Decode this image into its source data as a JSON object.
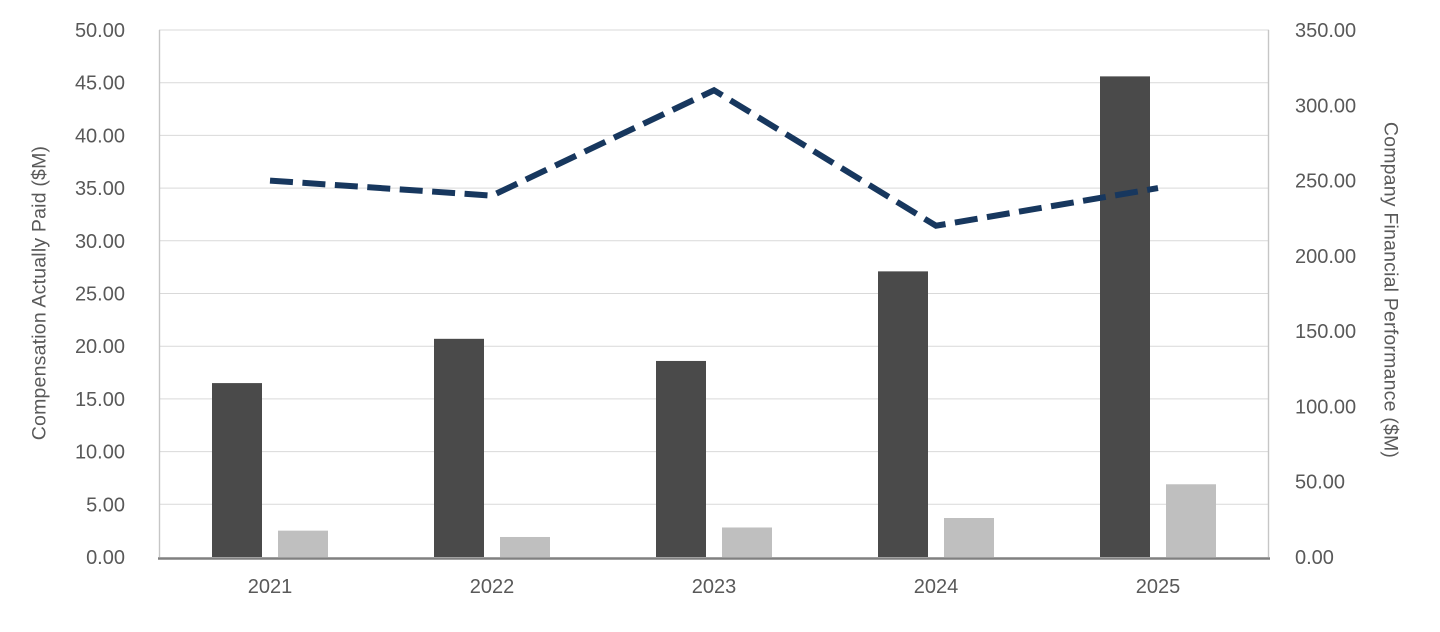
{
  "chart_data": {
    "type": "bar",
    "subtype": "combo-bar-line-dual-axis",
    "categories": [
      "2021",
      "2022",
      "2023",
      "2024",
      "2025"
    ],
    "series": [
      {
        "name": "compensation-actually-paid-dark-bars",
        "type": "bar",
        "axis": "left",
        "color": "#4A4A4A",
        "values": [
          16.5,
          20.7,
          18.6,
          27.1,
          45.6
        ]
      },
      {
        "name": "secondary-compensation-light-bars",
        "type": "bar",
        "axis": "left",
        "color": "#BFBFBF",
        "values": [
          2.5,
          1.9,
          2.8,
          3.7,
          6.9
        ]
      },
      {
        "name": "company-financial-performance-dashed-line",
        "type": "line",
        "axis": "right",
        "color": "#17375E",
        "dashed": true,
        "values": [
          250,
          240,
          310,
          220,
          245
        ]
      }
    ],
    "left_axis": {
      "label": "Compensation Actually Paid ($M)",
      "min": 0,
      "max": 50,
      "step": 5,
      "tick_decimals": 2,
      "tick_labels": [
        "0.00",
        "5.00",
        "10.00",
        "15.00",
        "20.00",
        "25.00",
        "30.00",
        "35.00",
        "40.00",
        "45.00",
        "50.00"
      ]
    },
    "right_axis": {
      "label": "Company Financial Performance ($M)",
      "min": 0,
      "max": 350,
      "step": 50,
      "tick_decimals": 2,
      "tick_labels": [
        "0.00",
        "50.00",
        "100.00",
        "150.00",
        "200.00",
        "250.00",
        "300.00",
        "350.00"
      ]
    },
    "grid": "horizontal",
    "legend": "none",
    "title": "",
    "style": {
      "grid_color": "#D9D9D9",
      "plot_border_color": "#C6C6C6",
      "axis_line_color": "#808080",
      "tick_text_color": "#595959"
    }
  }
}
